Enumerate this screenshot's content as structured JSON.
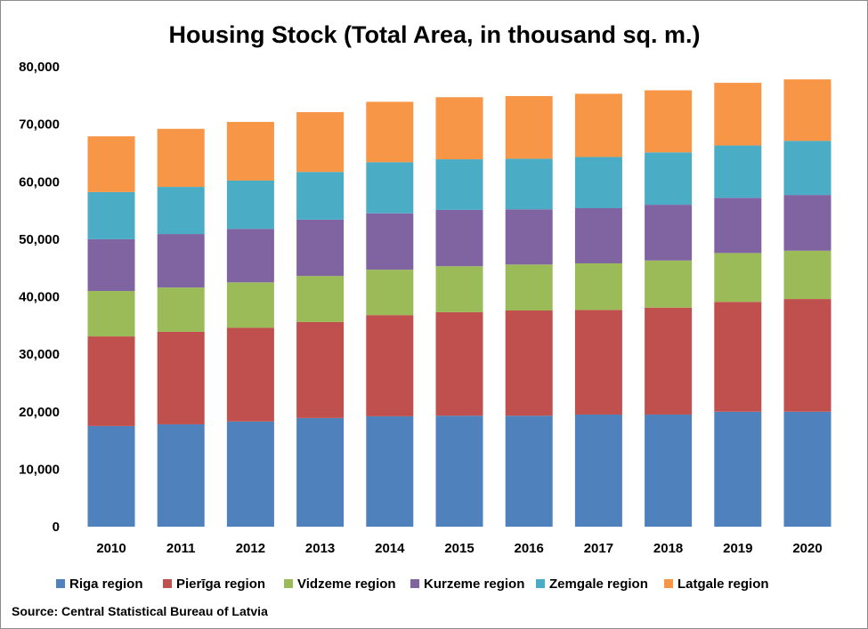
{
  "chart_data": {
    "type": "bar",
    "stacked": true,
    "title": "Housing Stock (Total Area, in thousand sq. m.)",
    "xlabel": "",
    "ylabel": "",
    "ylim": [
      0,
      80000
    ],
    "yticks": [
      "0",
      "10,000",
      "20,000",
      "30,000",
      "40,000",
      "50,000",
      "60,000",
      "70,000",
      "80,000"
    ],
    "grid": false,
    "legend_position": "bottom",
    "categories": [
      "2010",
      "2011",
      "2012",
      "2013",
      "2014",
      "2015",
      "2016",
      "2017",
      "2018",
      "2019",
      "2020"
    ],
    "series": [
      {
        "name": "Riga region",
        "color": "#4F81BD",
        "values": [
          17500,
          17800,
          18300,
          18900,
          19200,
          19300,
          19300,
          19500,
          19500,
          20000,
          20000
        ]
      },
      {
        "name": "Pierīga region",
        "color": "#C0504D",
        "values": [
          15600,
          16100,
          16300,
          16700,
          17600,
          18000,
          18300,
          18200,
          18600,
          19100,
          19600
        ]
      },
      {
        "name": "Vidzeme region",
        "color": "#9BBB59",
        "values": [
          7900,
          7700,
          7900,
          8000,
          7900,
          8000,
          8000,
          8100,
          8200,
          8500,
          8400
        ]
      },
      {
        "name": "Kurzeme region",
        "color": "#8064A2",
        "values": [
          9000,
          9300,
          9300,
          9800,
          9800,
          9800,
          9600,
          9600,
          9700,
          9600,
          9700
        ]
      },
      {
        "name": "Zemgale region",
        "color": "#4BACC6",
        "values": [
          8200,
          8200,
          8400,
          8300,
          8900,
          8800,
          8800,
          8900,
          9100,
          9100,
          9400
        ]
      },
      {
        "name": "Latgale region",
        "color": "#F79646",
        "values": [
          9700,
          10100,
          10200,
          10400,
          10500,
          10800,
          10900,
          11000,
          10800,
          10900,
          10700
        ]
      }
    ],
    "source": "Source: Central Statistical Bureau of Latvia"
  }
}
